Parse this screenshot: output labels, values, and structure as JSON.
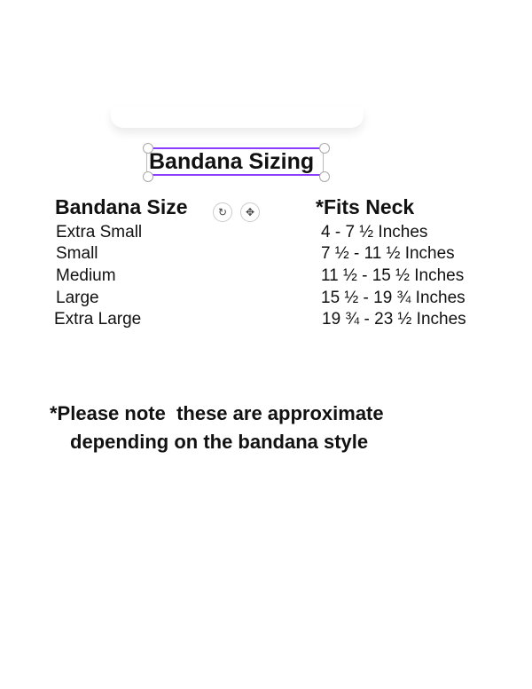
{
  "title": "Bandana Sizing",
  "headers": {
    "size": "Bandana Size",
    "neck": "*Fits Neck"
  },
  "rows": [
    {
      "size": "Extra Small",
      "neck": "4 - 7 ½ Inches"
    },
    {
      "size": "Small",
      "neck": "7 ½ - 11 ½ Inches"
    },
    {
      "size": "Medium",
      "neck": "11 ½ - 15 ½ Inches"
    },
    {
      "size": "Large",
      "neck": "15 ½ - 19 ¾ Inches"
    },
    {
      "size": "Extra Large",
      "neck": "19 ¾ - 23 ½ Inches"
    }
  ],
  "note": {
    "line1": "*Please note  these are approximate",
    "line2": "depending on the bandana style"
  },
  "icons": {
    "rotate": "↻",
    "move": "✥"
  },
  "accent": "#8b3dff"
}
